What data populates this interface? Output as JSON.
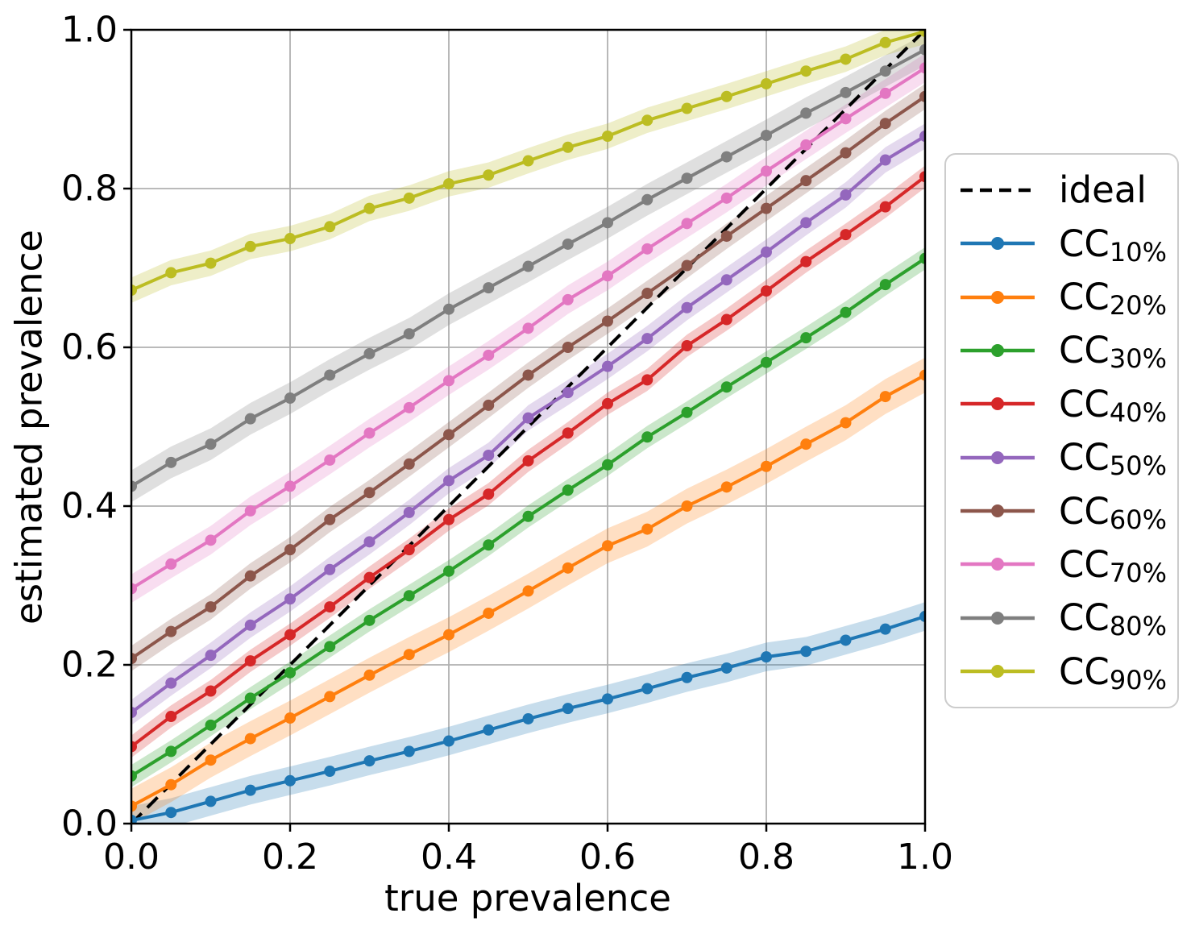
{
  "chart_data": {
    "type": "line",
    "title": "",
    "xlabel": "true prevalence",
    "ylabel": "estimated prevalence",
    "xlim": [
      0.0,
      1.0
    ],
    "ylim": [
      0.0,
      1.0
    ],
    "grid": true,
    "legend_position": "outside right",
    "x_tick_values": [
      0.0,
      0.2,
      0.4,
      0.6,
      0.8,
      1.0
    ],
    "x_tick_labels": [
      "0.0",
      "0.2",
      "0.4",
      "0.6",
      "0.8",
      "1.0"
    ],
    "y_tick_values": [
      0.0,
      0.2,
      0.4,
      0.6,
      0.8,
      1.0
    ],
    "y_tick_labels": [
      "0.0",
      "0.2",
      "0.4",
      "0.6",
      "0.8",
      "1.0"
    ],
    "style": {
      "background": "#ffffff",
      "grid_color": "#b0b0b0",
      "axis_color": "#000000",
      "text_color": "#000000",
      "legend_border_color": "#cccccc",
      "band_opacity": 0.25
    },
    "ideal": {
      "label": "ideal",
      "color": "#000000",
      "linestyle": "dashed",
      "points": [
        [
          0.0,
          0.0
        ],
        [
          1.0,
          1.0
        ]
      ]
    },
    "x": [
      0.0,
      0.05,
      0.1,
      0.15,
      0.2,
      0.25,
      0.3,
      0.35,
      0.4,
      0.45,
      0.5,
      0.55,
      0.6,
      0.65,
      0.7,
      0.75,
      0.8,
      0.85,
      0.9,
      0.95,
      1.0
    ],
    "series": [
      {
        "name": "CC_10%",
        "label_base": "CC",
        "label_sub": "10%",
        "color": "#1f77b4",
        "band": 0.018,
        "values": [
          0.004,
          0.014,
          0.028,
          0.042,
          0.054,
          0.066,
          0.079,
          0.091,
          0.104,
          0.118,
          0.132,
          0.145,
          0.157,
          0.17,
          0.184,
          0.196,
          0.21,
          0.217,
          0.231,
          0.245,
          0.261
        ]
      },
      {
        "name": "CC_20%",
        "label_base": "CC",
        "label_sub": "20%",
        "color": "#ff7f0e",
        "band": 0.022,
        "values": [
          0.022,
          0.049,
          0.08,
          0.107,
          0.133,
          0.16,
          0.187,
          0.213,
          0.238,
          0.265,
          0.293,
          0.322,
          0.35,
          0.371,
          0.4,
          0.424,
          0.45,
          0.478,
          0.505,
          0.538,
          0.565
        ]
      },
      {
        "name": "CC_30%",
        "label_base": "CC",
        "label_sub": "30%",
        "color": "#2ca02c",
        "band": 0.014,
        "values": [
          0.06,
          0.091,
          0.124,
          0.158,
          0.19,
          0.223,
          0.256,
          0.287,
          0.318,
          0.351,
          0.387,
          0.42,
          0.452,
          0.487,
          0.518,
          0.55,
          0.581,
          0.612,
          0.644,
          0.679,
          0.712
        ]
      },
      {
        "name": "CC_40%",
        "label_base": "CC",
        "label_sub": "40%",
        "color": "#d62728",
        "band": 0.014,
        "values": [
          0.097,
          0.135,
          0.167,
          0.205,
          0.238,
          0.273,
          0.31,
          0.345,
          0.383,
          0.415,
          0.457,
          0.492,
          0.529,
          0.559,
          0.602,
          0.635,
          0.671,
          0.708,
          0.742,
          0.777,
          0.815
        ]
      },
      {
        "name": "CC_50%",
        "label_base": "CC",
        "label_sub": "50%",
        "color": "#9467bd",
        "band": 0.016,
        "values": [
          0.14,
          0.177,
          0.212,
          0.25,
          0.283,
          0.32,
          0.355,
          0.392,
          0.432,
          0.464,
          0.511,
          0.543,
          0.576,
          0.611,
          0.65,
          0.685,
          0.72,
          0.757,
          0.792,
          0.836,
          0.866
        ]
      },
      {
        "name": "CC_60%",
        "label_base": "CC",
        "label_sub": "60%",
        "color": "#8c564b",
        "band": 0.016,
        "values": [
          0.208,
          0.242,
          0.273,
          0.312,
          0.345,
          0.383,
          0.417,
          0.453,
          0.49,
          0.527,
          0.565,
          0.6,
          0.633,
          0.668,
          0.703,
          0.74,
          0.775,
          0.81,
          0.845,
          0.882,
          0.916
        ]
      },
      {
        "name": "CC_70%",
        "label_base": "CC",
        "label_sub": "70%",
        "color": "#e377c2",
        "band": 0.018,
        "values": [
          0.296,
          0.327,
          0.357,
          0.394,
          0.425,
          0.458,
          0.492,
          0.524,
          0.558,
          0.59,
          0.624,
          0.66,
          0.69,
          0.724,
          0.756,
          0.788,
          0.822,
          0.855,
          0.888,
          0.92,
          0.952
        ]
      },
      {
        "name": "CC_80%",
        "label_base": "CC",
        "label_sub": "80%",
        "color": "#7f7f7f",
        "band": 0.02,
        "values": [
          0.425,
          0.455,
          0.478,
          0.51,
          0.536,
          0.565,
          0.592,
          0.617,
          0.648,
          0.675,
          0.702,
          0.73,
          0.757,
          0.786,
          0.813,
          0.84,
          0.867,
          0.895,
          0.921,
          0.948,
          0.975
        ]
      },
      {
        "name": "CC_90%",
        "label_base": "CC",
        "label_sub": "90%",
        "color": "#bcbd22",
        "band": 0.016,
        "values": [
          0.672,
          0.694,
          0.706,
          0.727,
          0.737,
          0.752,
          0.775,
          0.788,
          0.806,
          0.817,
          0.835,
          0.852,
          0.866,
          0.886,
          0.901,
          0.916,
          0.932,
          0.948,
          0.963,
          0.984,
          0.998
        ]
      }
    ]
  }
}
